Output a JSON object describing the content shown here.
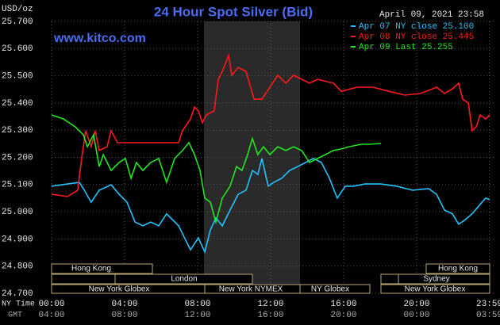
{
  "chart_data": {
    "type": "line",
    "title": "24 Hour Spot Silver (Bid)",
    "ylabel": "USD/oz",
    "date": "April 09, 2021 23:58",
    "watermark": "www.kitco.com",
    "xlabel": "NY Time",
    "x2label": "GMT",
    "xlim": [
      0,
      24
    ],
    "ylim": [
      24.7,
      25.7
    ],
    "grid": true,
    "legend": "top-right",
    "yticks": [
      {
        "value": 24.7,
        "label": "24.700"
      },
      {
        "value": 24.8,
        "label": "24.800"
      },
      {
        "value": 24.9,
        "label": "24.900"
      },
      {
        "value": 25.0,
        "label": "25.000"
      },
      {
        "value": 25.1,
        "label": "25.100"
      },
      {
        "value": 25.2,
        "label": "25.200"
      },
      {
        "value": 25.3,
        "label": "25.300"
      },
      {
        "value": 25.4,
        "label": "25.400"
      },
      {
        "value": 25.5,
        "label": "25.500"
      },
      {
        "value": 25.6,
        "label": "25.600"
      },
      {
        "value": 25.7,
        "label": "25.700"
      }
    ],
    "xticks": [
      {
        "value": 0,
        "label": "00:00"
      },
      {
        "value": 4,
        "label": "04:00"
      },
      {
        "value": 8,
        "label": "08:00"
      },
      {
        "value": 12,
        "label": "12:00"
      },
      {
        "value": 16,
        "label": "16:00"
      },
      {
        "value": 20,
        "label": "20:00"
      },
      {
        "value": 23.98,
        "label": "23:59"
      }
    ],
    "x2ticks": [
      {
        "value": 0,
        "label": "04:00"
      },
      {
        "value": 4,
        "label": "08:00"
      },
      {
        "value": 8,
        "label": "12:00"
      },
      {
        "value": 12,
        "label": "16:00"
      },
      {
        "value": 16,
        "label": "20:00"
      },
      {
        "value": 20,
        "label": "00:00"
      },
      {
        "value": 23.98,
        "label": "03:59"
      }
    ],
    "sessions": [
      "Hong Kong",
      "Hong Kong",
      "London",
      "Sydney",
      "New York Globex",
      "New York NYMEX",
      "NY Globex",
      "New York Globex"
    ],
    "series": [
      {
        "name": "Apr 07 NY close 25.100",
        "color": "#22c4ff",
        "x": [
          0,
          0.87,
          1.52,
          1.74,
          2.17,
          2.61,
          3.26,
          3.7,
          4.13,
          4.57,
          5.0,
          5.43,
          5.87,
          6.3,
          6.96,
          7.39,
          7.61,
          8.04,
          8.39,
          8.7,
          9.0,
          9.35,
          9.78,
          10.22,
          10.65,
          11.0,
          11.3,
          11.52,
          11.87,
          12.17,
          12.61,
          13.04,
          13.48,
          13.91,
          14.35,
          14.78,
          15.22,
          15.65,
          16.09,
          16.52,
          17.17,
          18.04,
          18.91,
          19.78,
          20.65,
          21.09,
          21.52,
          21.96,
          22.3,
          22.61,
          23.04,
          23.48,
          23.78,
          24
        ],
        "values": [
          25.094,
          25.102,
          25.108,
          25.085,
          25.035,
          25.079,
          25.099,
          25.064,
          25.035,
          24.962,
          24.948,
          24.962,
          24.948,
          24.992,
          24.948,
          24.889,
          24.86,
          24.904,
          24.852,
          24.933,
          24.977,
          24.948,
          25.006,
          25.064,
          25.079,
          25.152,
          25.137,
          25.196,
          25.094,
          25.108,
          25.123,
          25.152,
          25.166,
          25.181,
          25.196,
          25.181,
          25.123,
          25.05,
          25.094,
          25.094,
          25.102,
          25.102,
          25.094,
          25.079,
          25.085,
          25.064,
          25.006,
          24.992,
          24.954,
          24.968,
          24.992,
          25.027,
          25.05,
          25.044
        ]
      },
      {
        "name": "Apr 08 NY close 25.445",
        "color": "#ff1a1a",
        "x": [
          0,
          0.87,
          1.43,
          1.65,
          1.87,
          2.17,
          2.39,
          2.61,
          3.04,
          3.26,
          3.61,
          4.13,
          5.87,
          6.96,
          7.17,
          7.61,
          7.83,
          8.04,
          8.26,
          8.48,
          8.91,
          9.13,
          9.35,
          9.7,
          9.87,
          10.22,
          10.65,
          11.09,
          11.52,
          11.96,
          12.39,
          12.83,
          13.26,
          13.7,
          14.13,
          14.57,
          15.43,
          15.87,
          16.74,
          17.61,
          18.48,
          19.35,
          20.22,
          21.09,
          21.52,
          21.96,
          22.3,
          22.52,
          22.83,
          23.04,
          23.26,
          23.48,
          23.78,
          24
        ],
        "values": [
          25.064,
          25.056,
          25.079,
          25.196,
          25.298,
          25.239,
          25.298,
          25.225,
          25.239,
          25.298,
          25.254,
          25.254,
          25.254,
          25.254,
          25.298,
          25.341,
          25.385,
          25.371,
          25.327,
          25.356,
          25.371,
          25.487,
          25.516,
          25.575,
          25.502,
          25.531,
          25.516,
          25.414,
          25.414,
          25.458,
          25.502,
          25.473,
          25.502,
          25.487,
          25.473,
          25.487,
          25.473,
          25.443,
          25.458,
          25.458,
          25.443,
          25.429,
          25.435,
          25.458,
          25.435,
          25.452,
          25.473,
          25.414,
          25.4,
          25.298,
          25.312,
          25.356,
          25.341,
          25.356
        ]
      },
      {
        "name": "Apr 09 Last 25.255",
        "color": "#22e622",
        "x": [
          0,
          0.65,
          1.3,
          1.74,
          1.96,
          2.3,
          2.61,
          2.83,
          3.26,
          3.7,
          4.04,
          4.35,
          4.65,
          5.0,
          5.43,
          5.87,
          6.3,
          6.74,
          7.17,
          7.52,
          7.83,
          8.13,
          8.39,
          8.7,
          9.0,
          9.35,
          9.78,
          10.13,
          10.43,
          10.74,
          11.0,
          11.3,
          11.61,
          11.96,
          12.39,
          12.83,
          13.26,
          13.7,
          14.13,
          14.57,
          15.0,
          15.43,
          15.87,
          16.3,
          16.96,
          17.39,
          18.04
        ],
        "values": [
          25.356,
          25.341,
          25.312,
          25.283,
          25.239,
          25.283,
          25.166,
          25.21,
          25.152,
          25.181,
          25.196,
          25.123,
          25.181,
          25.152,
          25.181,
          25.196,
          25.108,
          25.196,
          25.225,
          25.254,
          25.21,
          25.152,
          25.05,
          25.035,
          24.962,
          25.05,
          25.094,
          25.166,
          25.152,
          25.21,
          25.269,
          25.21,
          25.239,
          25.21,
          25.239,
          25.225,
          25.239,
          25.225,
          25.181,
          25.196,
          25.21,
          25.225,
          25.231,
          25.239,
          25.248,
          25.248,
          25.251
        ]
      }
    ]
  }
}
